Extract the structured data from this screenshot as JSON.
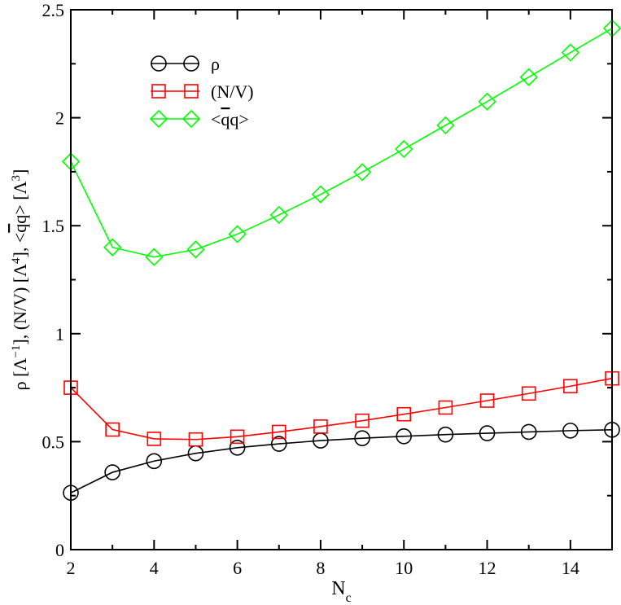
{
  "chart_data": {
    "type": "line",
    "title": "",
    "xlabel": {
      "main": "N",
      "sub": "c"
    },
    "ylabel": {
      "parts": [
        {
          "t": "ρ [Λ"
        },
        {
          "t": "−1",
          "sup": true
        },
        {
          "t": "], (N/V) [Λ"
        },
        {
          "t": "4",
          "sup": true
        },
        {
          "t": "], <"
        },
        {
          "t": "q",
          "bar": true
        },
        {
          "t": "q> [Λ"
        },
        {
          "t": "3",
          "sup": true
        },
        {
          "t": "]"
        }
      ]
    },
    "xlim": [
      2,
      15
    ],
    "ylim": [
      0,
      2.5
    ],
    "xticks": [
      2,
      4,
      6,
      8,
      10,
      12,
      14
    ],
    "xticklabels": [
      "2",
      "4",
      "6",
      "8",
      "10",
      "12",
      "14"
    ],
    "yticks": [
      0,
      0.5,
      1,
      1.5,
      2,
      2.5
    ],
    "yticklabels": [
      "0",
      "0.5",
      "1",
      "1.5",
      "2",
      "2.5"
    ],
    "legend_position": "top-left",
    "series": [
      {
        "name": "ρ",
        "label_parts": [
          {
            "t": "ρ"
          }
        ],
        "color": "#000000",
        "marker": "circle",
        "x": [
          2,
          3,
          4,
          5,
          6,
          7,
          8,
          9,
          10,
          11,
          12,
          13,
          14,
          15
        ],
        "values": [
          0.263,
          0.358,
          0.41,
          0.446,
          0.472,
          0.49,
          0.505,
          0.516,
          0.525,
          0.533,
          0.539,
          0.545,
          0.551,
          0.555
        ]
      },
      {
        "name": "(N/V)",
        "label_parts": [
          {
            "t": "(N/V)"
          }
        ],
        "color": "#ff0000",
        "marker": "square",
        "x": [
          2,
          3,
          4,
          5,
          6,
          7,
          8,
          9,
          10,
          11,
          12,
          13,
          14,
          15
        ],
        "values": [
          0.75,
          0.556,
          0.513,
          0.51,
          0.523,
          0.545,
          0.57,
          0.597,
          0.627,
          0.658,
          0.69,
          0.723,
          0.757,
          0.793
        ]
      },
      {
        "name": "<qq>",
        "label_parts": [
          {
            "t": "<"
          },
          {
            "t": "q",
            "bar": true
          },
          {
            "t": "q>"
          }
        ],
        "color": "#00ff00",
        "marker": "diamond",
        "x": [
          2,
          3,
          4,
          5,
          6,
          7,
          8,
          9,
          10,
          11,
          12,
          13,
          14,
          15
        ],
        "values": [
          1.797,
          1.4,
          1.355,
          1.39,
          1.461,
          1.55,
          1.645,
          1.748,
          1.855,
          1.965,
          2.075,
          2.188,
          2.302,
          2.414
        ]
      }
    ]
  }
}
